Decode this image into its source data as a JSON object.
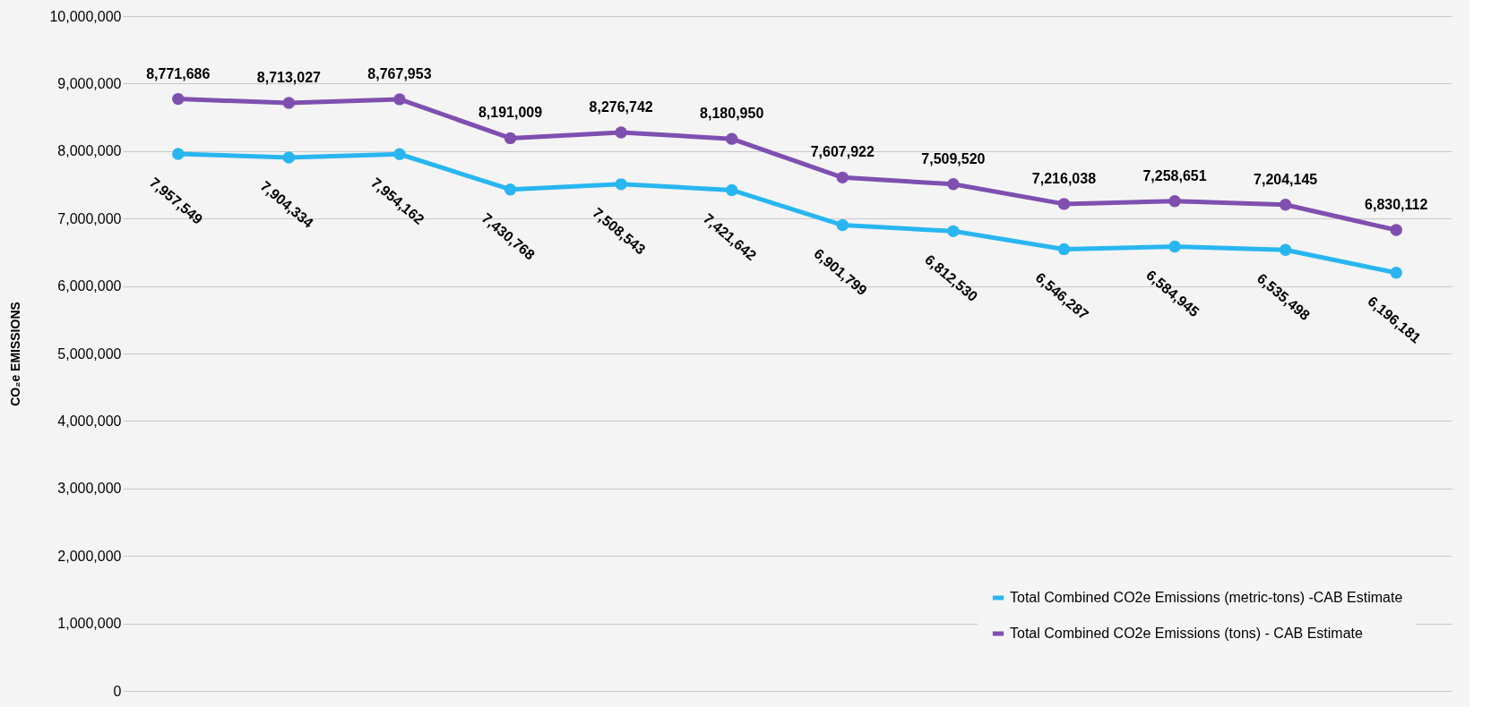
{
  "chart_data": {
    "type": "line",
    "ylabel": "CO₂e EMISSIONS",
    "categories": [
      null,
      null,
      null,
      null,
      null,
      null,
      null,
      null,
      null,
      null,
      null,
      null
    ],
    "series": [
      {
        "name": "Total Combined CO2e Emissions (metric-tons) -CAB Estimate",
        "color": "#29b6f0",
        "values": [
          7957549,
          7904334,
          7954162,
          7430768,
          7508543,
          7421642,
          6901799,
          6812530,
          6546287,
          6584945,
          6535498,
          6196181
        ],
        "value_labels": [
          "7,957,549",
          "7,904,334",
          "7,954,162",
          "7,430,768",
          "7,508,543",
          "7,421,642",
          "6,901,799",
          "6,812,530",
          "6,546,287",
          "6,584,945",
          "6,535,498",
          "6,196,181"
        ]
      },
      {
        "name": "Total Combined CO2e Emissions (tons) - CAB Estimate",
        "color": "#7f4fb0",
        "values": [
          8771686,
          8713027,
          8767953,
          8191009,
          8276742,
          8180950,
          7607922,
          7509520,
          7216038,
          7258651,
          7204145,
          6830112
        ],
        "value_labels": [
          "8,771,686",
          "8,713,027",
          "8,767,953",
          "8,191,009",
          "8,276,742",
          "8,180,950",
          "7,607,922",
          "7,509,520",
          "7,216,038",
          "7,258,651",
          "7,204,145",
          "6,830,112"
        ]
      }
    ],
    "ylim": [
      0,
      10000000
    ],
    "yticks": [
      0,
      {
        "value": 1000000,
        "label": "1,000,000"
      },
      {
        "value": 2000000,
        "label": "2,000,000"
      },
      {
        "value": 3000000,
        "label": "3,000,000"
      },
      {
        "value": 4000000,
        "label": "4,000,000"
      },
      {
        "value": 5000000,
        "label": "5,000,000"
      },
      {
        "value": 6000000,
        "label": "6,000,000"
      },
      {
        "value": 7000000,
        "label": "7,000,000"
      },
      {
        "value": 8000000,
        "label": "8,000,000"
      },
      {
        "value": 9000000,
        "label": "9,000,000"
      },
      {
        "value": 10000000,
        "label": "10,000,000"
      }
    ],
    "grid": "y",
    "legend": "bottom right",
    "tick_labels": "y",
    "marker": "circle",
    "line_style": "solid"
  }
}
